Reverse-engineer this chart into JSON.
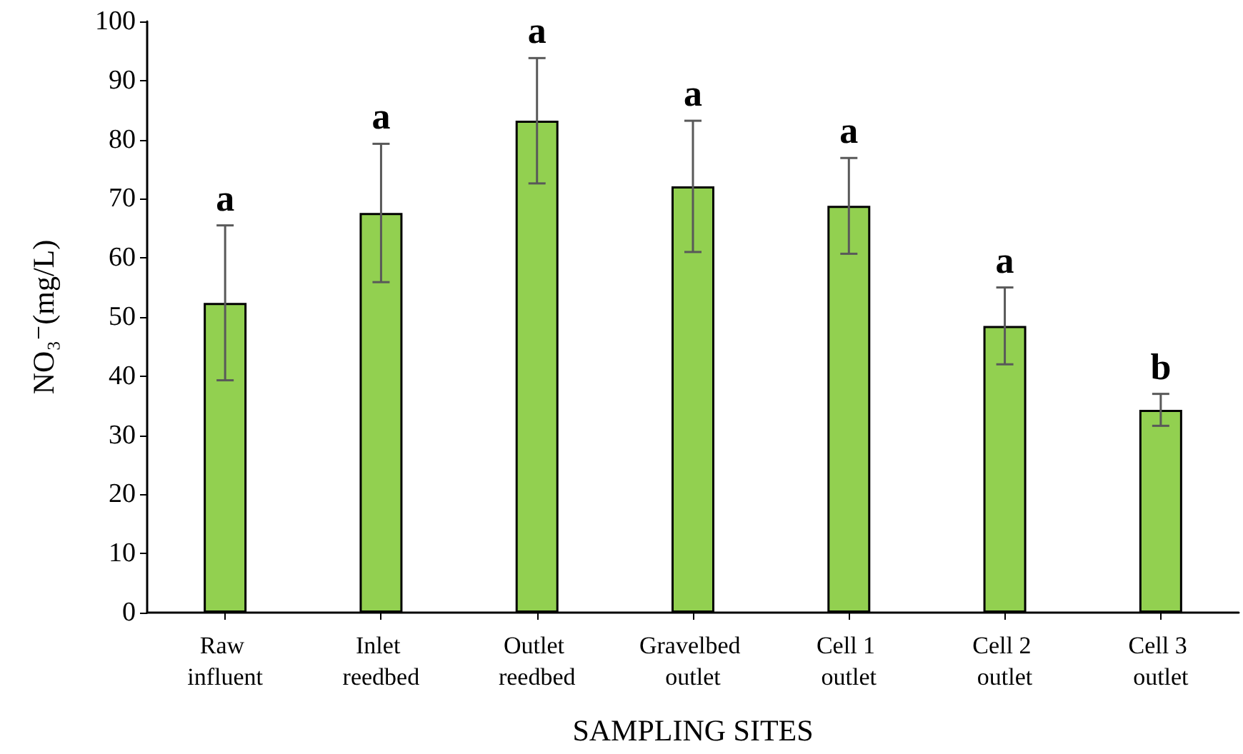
{
  "chart_data": {
    "type": "bar",
    "xlabel": "SAMPLING SITES",
    "ylabel": "NO₃⁻(mg/L)",
    "categories": [
      "Raw influent",
      "Inlet reedbed",
      "Outlet reedbed",
      "Gravelbed outlet",
      "Cell 1 outlet",
      "Cell 2 outlet",
      "Cell 3 outlet"
    ],
    "values": [
      52.4,
      67.6,
      83.2,
      72.1,
      68.8,
      48.5,
      34.3
    ],
    "errors": [
      13.1,
      11.7,
      10.6,
      11.1,
      8.1,
      6.5,
      2.7
    ],
    "color": "#92d050",
    "ylim": [
      0,
      100
    ],
    "yticks": [
      0,
      10,
      20,
      30,
      40,
      50,
      60,
      70,
      80,
      90,
      100
    ],
    "grid": false,
    "annotations": [
      {
        "text": "a",
        "x": "Raw influent",
        "y": 65.5
      },
      {
        "text": "a",
        "x": "Inlet reedbed",
        "y": 79.3
      },
      {
        "text": "a",
        "x": "Outlet reedbed",
        "y": 93.8
      },
      {
        "text": "a",
        "x": "Gravelbed outlet",
        "y": 83.2
      },
      {
        "text": "a",
        "x": "Cell 1 outlet",
        "y": 76.9
      },
      {
        "text": "a",
        "x": "Cell 2 outlet",
        "y": 55
      },
      {
        "text": "b",
        "x": "Cell 3 outlet",
        "y": 37
      }
    ]
  }
}
